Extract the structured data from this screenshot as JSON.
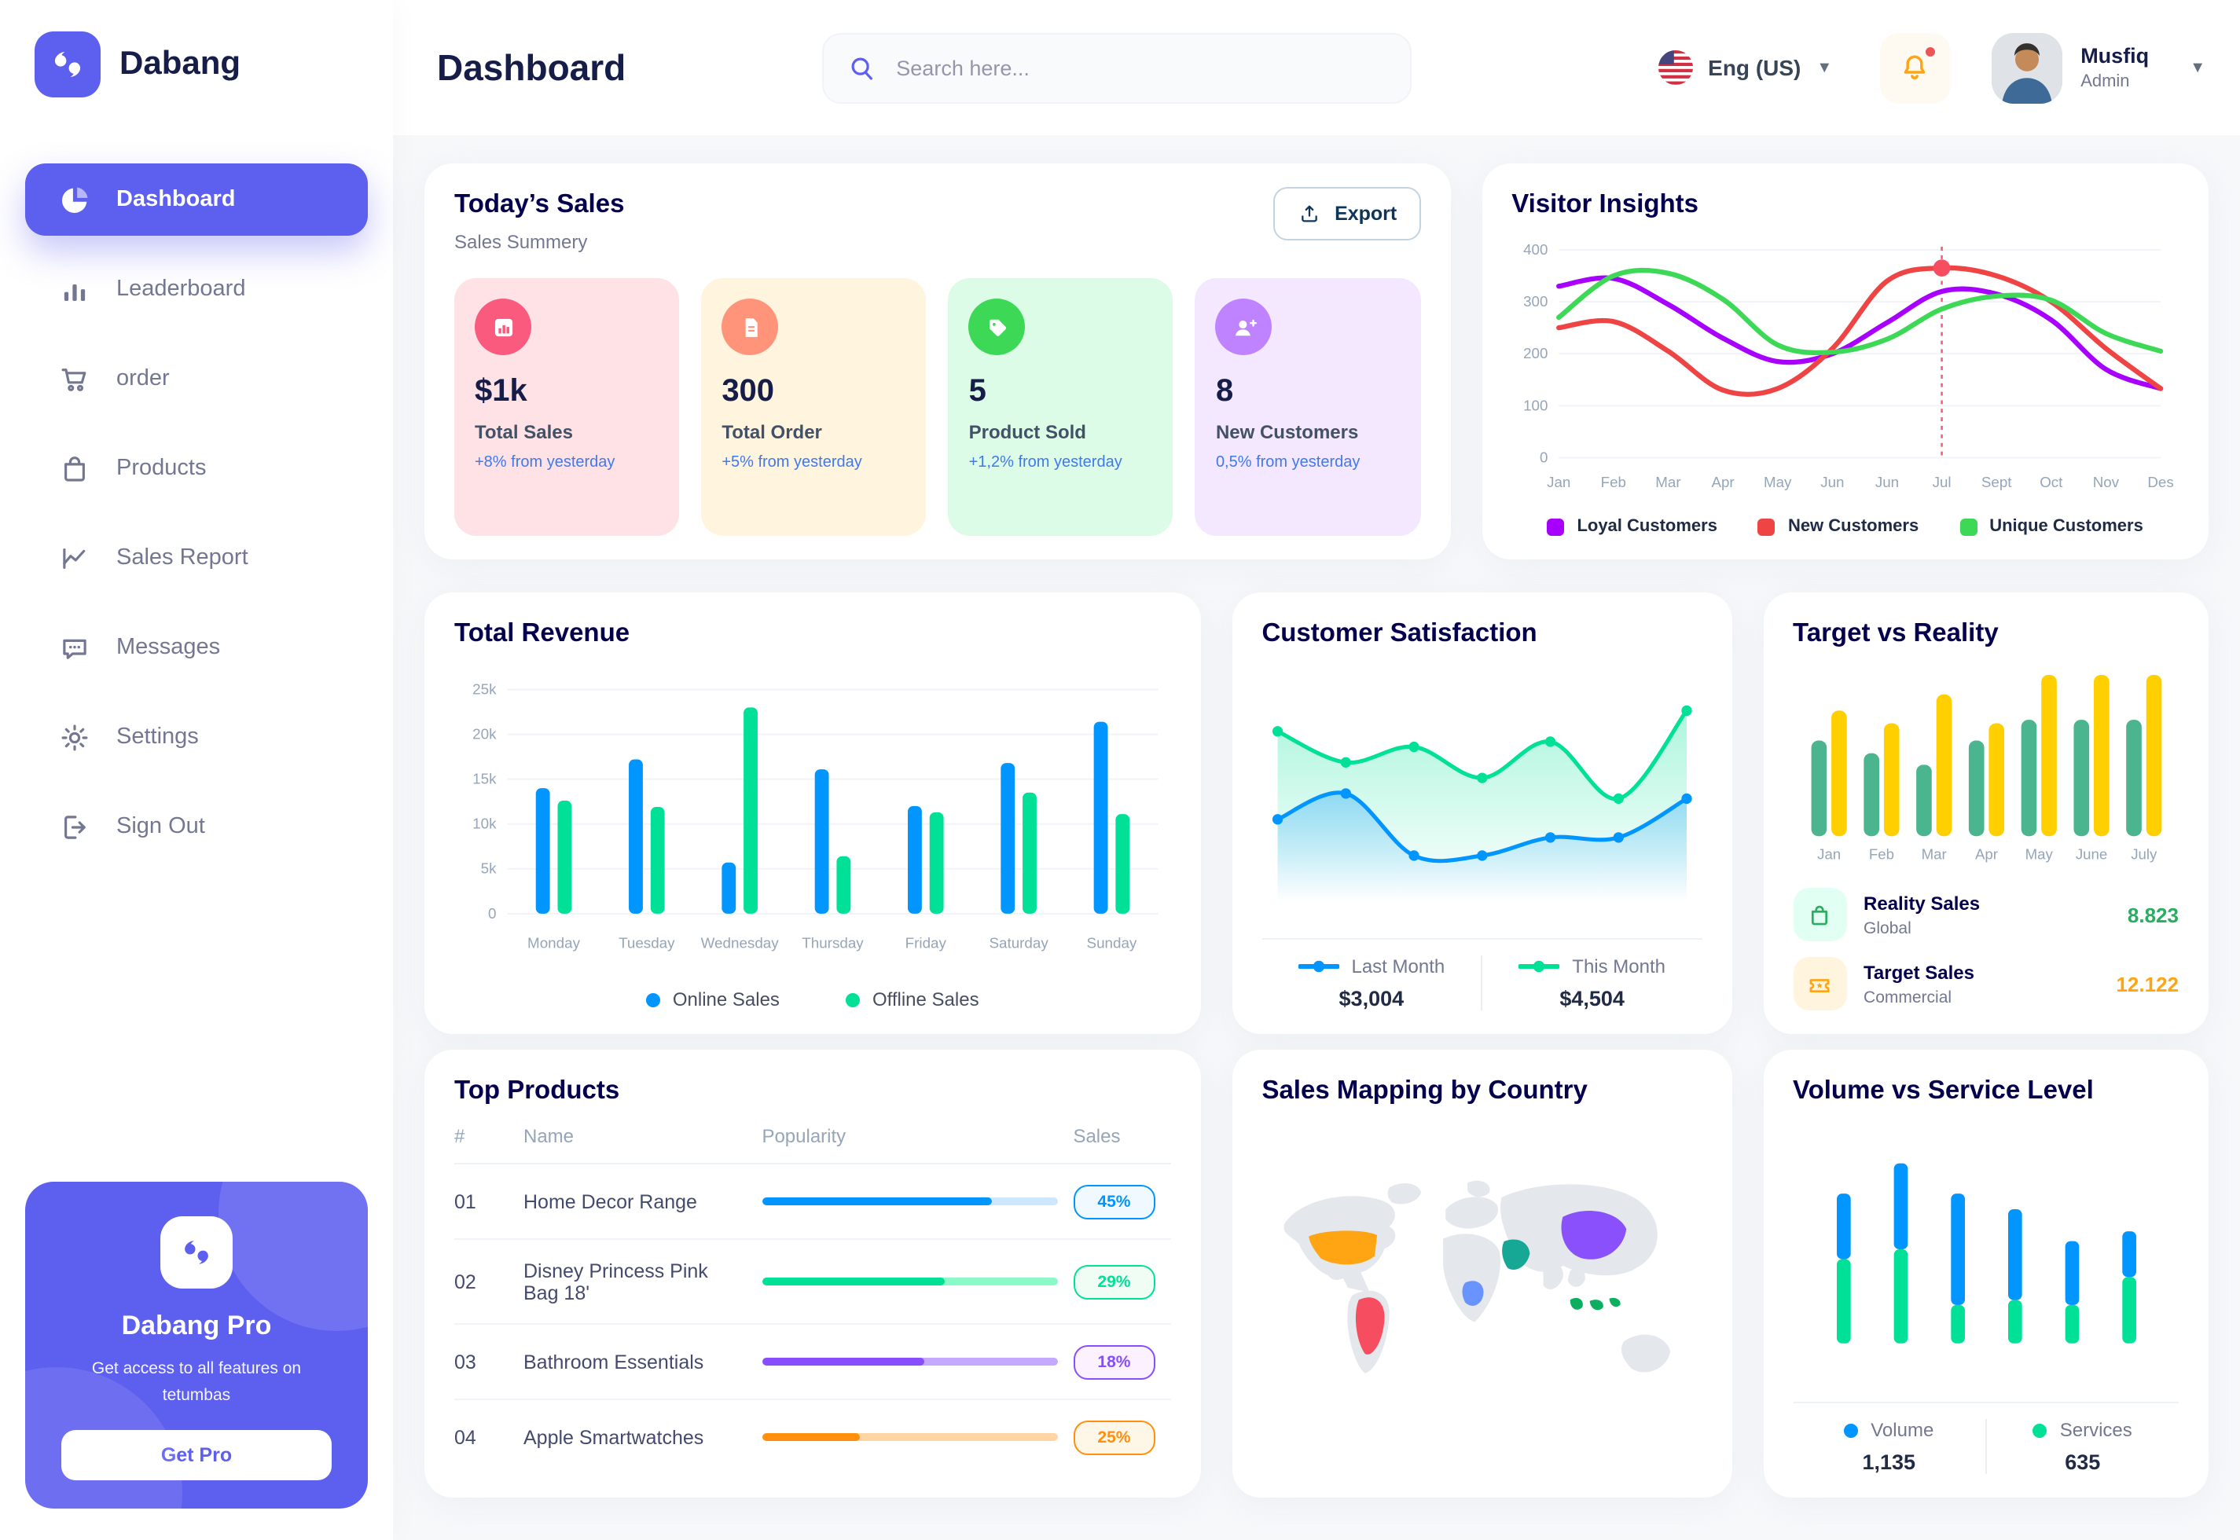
{
  "brand": {
    "name": "Dabang"
  },
  "header": {
    "title": "Dashboard",
    "search_placeholder": "Search here...",
    "language": "Eng (US)",
    "user": {
      "name": "Musfiq",
      "role": "Admin"
    }
  },
  "sidebar": {
    "items": [
      {
        "label": "Dashboard"
      },
      {
        "label": "Leaderboard"
      },
      {
        "label": "order"
      },
      {
        "label": "Products"
      },
      {
        "label": "Sales Report"
      },
      {
        "label": "Messages"
      },
      {
        "label": "Settings"
      },
      {
        "label": "Sign Out"
      }
    ],
    "promo": {
      "title": "Dabang Pro",
      "subtitle": "Get access to all features on tetumbas",
      "cta": "Get Pro"
    }
  },
  "todays_sales": {
    "title": "Today’s Sales",
    "subtitle": "Sales Summery",
    "export_label": "Export",
    "cards": [
      {
        "value": "$1k",
        "label": "Total Sales",
        "delta": "+8% from yesterday",
        "bg": "#FFE2E5",
        "icon_bg": "#FA5A7D",
        "icon": "bar-chart"
      },
      {
        "value": "300",
        "label": "Total Order",
        "delta": "+5% from yesterday",
        "bg": "#FFF4DE",
        "icon_bg": "#FF947A",
        "icon": "order-file"
      },
      {
        "value": "5",
        "label": "Product Sold",
        "delta": "+1,2% from yesterday",
        "bg": "#DCFCE7",
        "icon_bg": "#3CD856",
        "icon": "tag"
      },
      {
        "value": "8",
        "label": "New Customers",
        "delta": "0,5% from yesterday",
        "bg": "#F3E8FF",
        "icon_bg": "#BF83FF",
        "icon": "user-plus"
      }
    ]
  },
  "top_products": {
    "title": "Top Products",
    "headers": [
      "#",
      "Name",
      "Popularity",
      "Sales"
    ],
    "rows": [
      {
        "num": "01",
        "name": "Home Decor Range",
        "popularity": 78,
        "sales": "45%",
        "color": "#0095FF",
        "track": "#CDE7FF",
        "badge_bg": "#F0F9FF"
      },
      {
        "num": "02",
        "name": "Disney Princess Pink Bag 18'",
        "popularity": 62,
        "sales": "29%",
        "color": "#00E096",
        "track": "#8CFAC7",
        "badge_bg": "#F0FDF4"
      },
      {
        "num": "03",
        "name": "Bathroom Essentials",
        "popularity": 55,
        "sales": "18%",
        "color": "#884DFF",
        "track": "#C5A8FF",
        "badge_bg": "#FBF1FF"
      },
      {
        "num": "04",
        "name": "Apple Smartwatches",
        "popularity": 33,
        "sales": "25%",
        "color": "#FF8F0D",
        "track": "#FFD5A4",
        "badge_bg": "#FEF6E6"
      }
    ]
  },
  "chart_data": [
    {
      "id": "visitor_insights",
      "type": "line",
      "title": "Visitor Insights",
      "x": [
        "Jan",
        "Feb",
        "Mar",
        "Apr",
        "May",
        "Jun",
        "Jun",
        "Jul",
        "Sept",
        "Oct",
        "Nov",
        "Des"
      ],
      "ylim": [
        0,
        400
      ],
      "yticks": [
        0,
        100,
        200,
        300,
        400
      ],
      "grid": true,
      "legend_position": "bottom",
      "series": [
        {
          "name": "Loyal Customers",
          "color": "#A700FF",
          "values": [
            330,
            345,
            295,
            230,
            185,
            200,
            260,
            320,
            315,
            265,
            170,
            133
          ]
        },
        {
          "name": "New Customers",
          "color": "#EF4444",
          "values": [
            250,
            262,
            205,
            130,
            133,
            210,
            340,
            365,
            350,
            300,
            210,
            133
          ]
        },
        {
          "name": "Unique Customers",
          "color": "#3CD856",
          "values": [
            270,
            350,
            355,
            305,
            217,
            203,
            228,
            286,
            311,
            303,
            239,
            205
          ]
        }
      ],
      "highlight": {
        "x_index": 7,
        "x_label": "Jul",
        "series": "New Customers",
        "value": 365
      }
    },
    {
      "id": "total_revenue",
      "type": "bar",
      "title": "Total Revenue",
      "categories": [
        "Monday",
        "Tuesday",
        "Wednesday",
        "Thursday",
        "Friday",
        "Saturday",
        "Sunday"
      ],
      "ylim": [
        0,
        25
      ],
      "yticks": [
        "0",
        "5k",
        "10k",
        "15k",
        "20k",
        "25k"
      ],
      "ylabel_unit": "k",
      "grid": true,
      "legend_position": "bottom",
      "series": [
        {
          "name": "Online Sales",
          "color": "#0095FF",
          "values": [
            14,
            17.2,
            5.7,
            16.1,
            12,
            16.8,
            21.4
          ]
        },
        {
          "name": "Offline Sales",
          "color": "#00E096",
          "values": [
            12.6,
            11.9,
            23,
            6.4,
            11.3,
            13.5,
            11.1
          ]
        }
      ]
    },
    {
      "id": "customer_satisfaction",
      "type": "area",
      "title": "Customer Satisfaction",
      "ylim": [
        0,
        7.6
      ],
      "grid": false,
      "legend_position": "bottom",
      "series": [
        {
          "name": "Last Month",
          "color": "#0095FF",
          "total": "$3,004",
          "values": [
            2.8,
            3.8,
            1.4,
            1.4,
            2.1,
            2.1,
            3.6
          ]
        },
        {
          "name": "This Month",
          "color": "#00E096",
          "total": "$4,504",
          "values": [
            6.2,
            5.0,
            5.6,
            4.4,
            5.8,
            3.6,
            7.0
          ]
        }
      ]
    },
    {
      "id": "target_vs_reality",
      "type": "bar",
      "title": "Target vs Reality",
      "categories": [
        "Jan",
        "Feb",
        "Mar",
        "Apr",
        "May",
        "June",
        "July"
      ],
      "ylim": [
        0,
        15
      ],
      "grid": false,
      "legend_position": "bottom",
      "series": [
        {
          "name": "Reality Sales",
          "subtitle": "Global",
          "color": "#4AB58E",
          "value_label": "8.823",
          "value_color": "#27AE60",
          "icon_bg": "#E2FFF3",
          "values": [
            8.3,
            7.2,
            6.2,
            8.3,
            10.1,
            10.1,
            10.1
          ]
        },
        {
          "name": "Target Sales",
          "subtitle": "Commercial",
          "color": "#FFCF00",
          "value_label": "12.122",
          "value_color": "#FFA412",
          "icon_bg": "#FFF4DE",
          "values": [
            10.9,
            9.8,
            12.3,
            9.8,
            14,
            14,
            14
          ]
        }
      ]
    },
    {
      "id": "volume_vs_service",
      "type": "stacked-bar",
      "title": "Volume vs Service Level",
      "ylim": [
        0,
        1150
      ],
      "grid": false,
      "legend_position": "bottom",
      "series": [
        {
          "name": "Volume",
          "color": "#0095FF",
          "total": "1,135",
          "values": [
            400,
            525,
            680,
            555,
            390,
            280
          ]
        },
        {
          "name": "Services",
          "color": "#00E096",
          "total": "635",
          "values": [
            515,
            575,
            235,
            265,
            235,
            405
          ]
        }
      ]
    },
    {
      "id": "sales_mapping",
      "type": "map",
      "title": "Sales Mapping by Country",
      "countries": [
        {
          "name": "United States",
          "color": "#FFA412"
        },
        {
          "name": "Brazil",
          "color": "#F64E60"
        },
        {
          "name": "DR Congo",
          "color": "#6993FF"
        },
        {
          "name": "Saudi Arabia",
          "color": "#16A795"
        },
        {
          "name": "China",
          "color": "#8950FC"
        },
        {
          "name": "Indonesia",
          "color": "#0CAF60"
        }
      ]
    }
  ]
}
